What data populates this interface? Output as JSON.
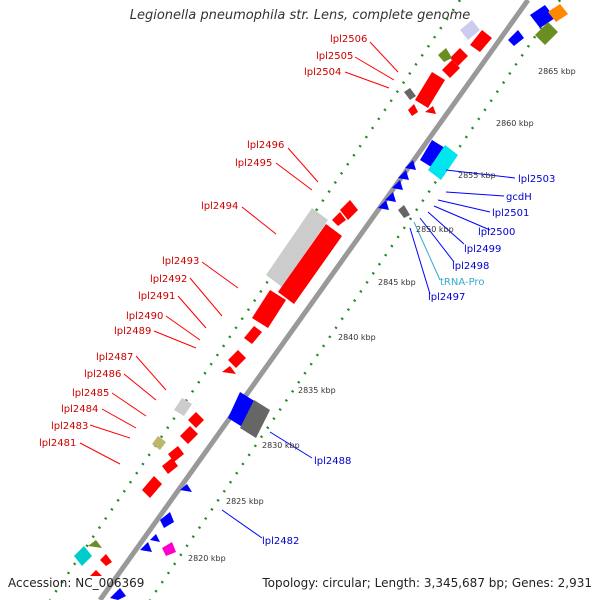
{
  "title": "Legionella pneumophila str. Lens, complete genome",
  "accession": "Accession: NC_006369",
  "summary": "Topology: circular; Length: 3,345,687 bp; Genes: 2,931",
  "colors": {
    "backbone": "#999999",
    "forward_gene": "#ff0000",
    "reverse_gene": "#0000ff",
    "tick": "#228b22",
    "label_forward": "#cc0000",
    "label_reverse": "#0000cc",
    "label_trna": "#33aacc"
  },
  "scale_labels": [
    "2865 kbp",
    "2860 kbp",
    "2855 kbp",
    "2850 kbp",
    "2845 kbp",
    "2840 kbp",
    "2835 kbp",
    "2830 kbp",
    "2825 kbp",
    "2820 kbp"
  ],
  "forward_labels": [
    "lpl2506",
    "lpl2505",
    "lpl2504",
    "lpl2496",
    "lpl2495",
    "lpl2494",
    "lpl2493",
    "lpl2492",
    "lpl2491",
    "lpl2490",
    "lpl2489",
    "lpl2487",
    "lpl2486",
    "lpl2485",
    "lpl2484",
    "lpl2483",
    "lpl2481"
  ],
  "reverse_labels": [
    "lpl2503",
    "gcdH",
    "lpl2501",
    "lpl2500",
    "lpl2499",
    "lpl2498",
    "tRNA-Pro",
    "lpl2497",
    "lpl2488",
    "lpl2482"
  ]
}
